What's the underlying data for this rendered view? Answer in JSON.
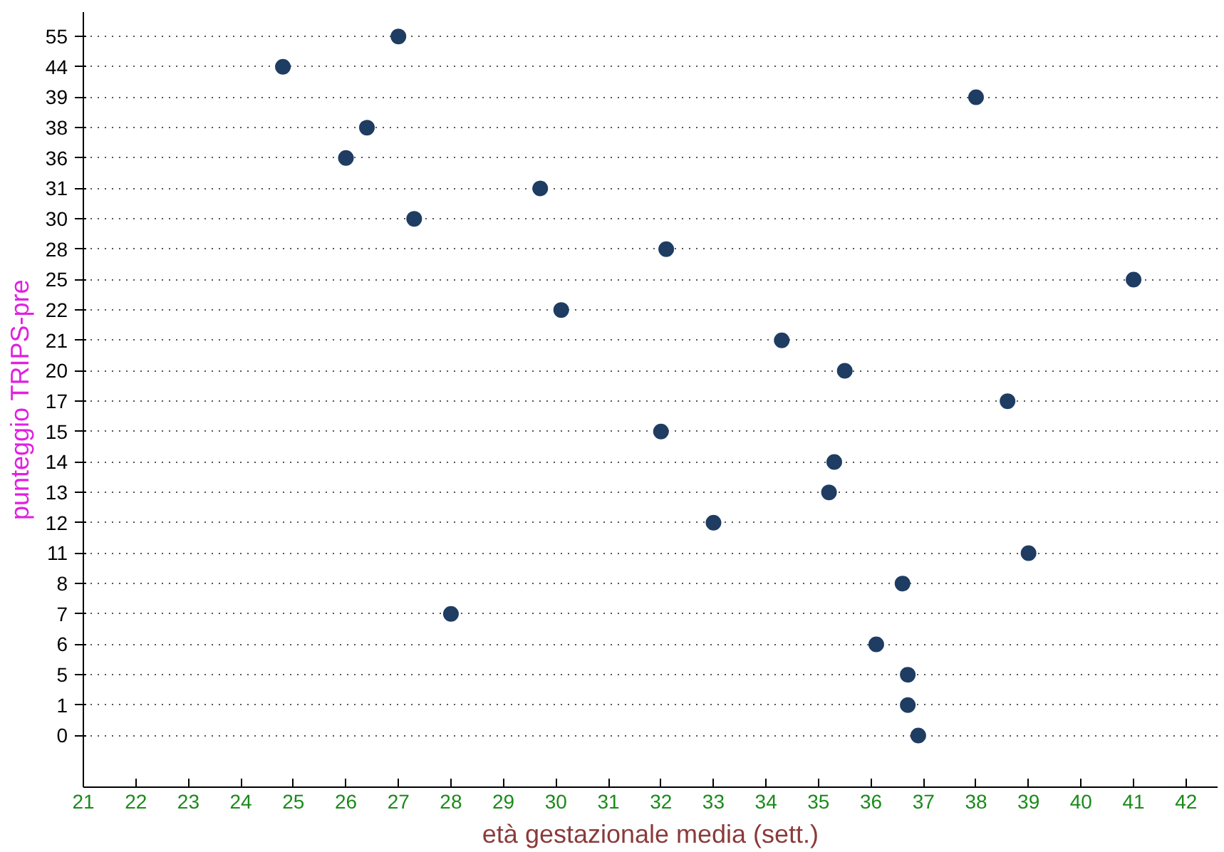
{
  "chart_data": {
    "type": "scatter",
    "orientation": "horizontal",
    "xlabel": "età gestazionale media (sett.)",
    "ylabel": "punteggio TRIPS-pre",
    "categories": [
      "55",
      "44",
      "39",
      "38",
      "36",
      "31",
      "30",
      "28",
      "25",
      "22",
      "21",
      "20",
      "17",
      "15",
      "14",
      "13",
      "12",
      "11",
      "8",
      "7",
      "6",
      "5",
      "1",
      "0"
    ],
    "values": [
      27,
      24.8,
      38,
      26.4,
      26,
      29.7,
      27.3,
      32.1,
      41,
      30.1,
      34.3,
      35.5,
      38.6,
      32,
      35.3,
      35.2,
      33,
      39,
      36.6,
      28,
      36.1,
      36.7,
      36.7,
      36.9
    ],
    "color": "#1f3d63",
    "marker": "circle",
    "xlim": [
      21,
      42.6
    ],
    "xticks": [
      21,
      22,
      23,
      24,
      25,
      26,
      27,
      28,
      29,
      30,
      31,
      32,
      33,
      34,
      35,
      36,
      37,
      38,
      39,
      40,
      41,
      42
    ],
    "grid": "y"
  }
}
